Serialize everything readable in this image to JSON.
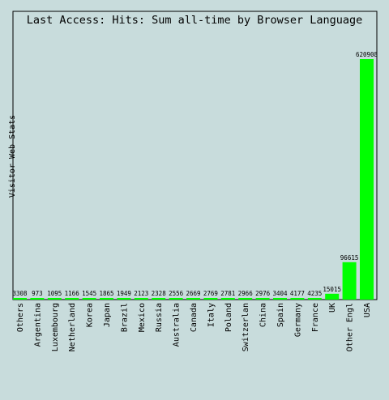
{
  "chart_data": {
    "type": "bar",
    "title": "Last Access: Hits: Sum all-time by Browser Language",
    "ylabel": "Visitor Web Stats",
    "xlabel": "",
    "categories": [
      "Others",
      "Argentina",
      "Luxembourg",
      "Netherland",
      "Korea",
      "Japan",
      "Brazil",
      "Mexico",
      "Russia",
      "Australia",
      "Canada",
      "Italy",
      "Poland",
      "Switzerlan",
      "China",
      "Spain",
      "Germany",
      "France",
      "UK",
      "Other Engl",
      "USA"
    ],
    "values": [
      3308,
      973,
      1095,
      1166,
      1545,
      1865,
      1949,
      2123,
      2328,
      2556,
      2669,
      2769,
      2781,
      2966,
      2976,
      3404,
      4177,
      4235,
      15015,
      96615,
      620908
    ],
    "value_labels": [
      "3308",
      "973",
      "1095",
      "1166",
      "1545",
      "1865",
      "1949",
      "2123",
      "2328",
      "2556",
      "2669",
      "2769",
      "2781",
      "2966",
      "2976",
      "3404",
      "4177",
      "4235",
      "15015",
      "96615",
      "620908"
    ],
    "ylim": [
      0,
      620908
    ],
    "grid": false,
    "legend": "none",
    "colors": {
      "bar": "#00ff00",
      "background": "#c8dcdc",
      "axis": "#000000"
    }
  }
}
